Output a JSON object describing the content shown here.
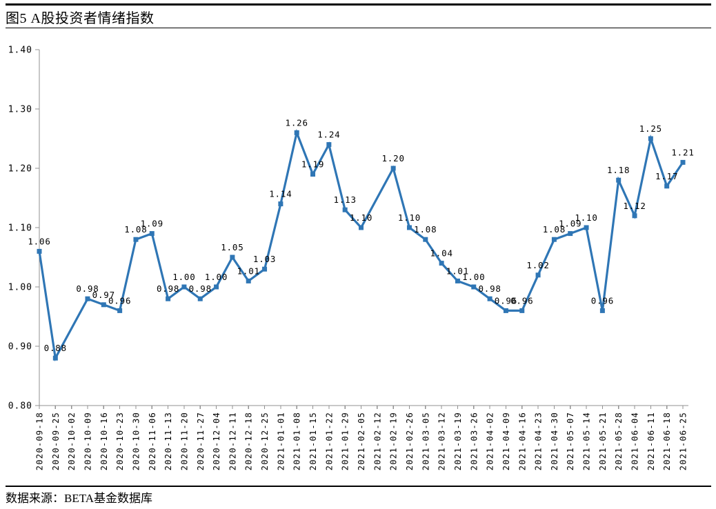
{
  "header": {
    "title": "图5 A股投资者情绪指数"
  },
  "footer": {
    "source_note": "数据来源：BETA基金数据库"
  },
  "colors": {
    "series_blue": "#2F76B5",
    "axis_gray": "#909090",
    "text_black": "#000000",
    "rule_black": "#000000",
    "background": "#ffffff"
  },
  "chart_data": {
    "type": "line",
    "title": "图5 A股投资者情绪指数",
    "xlabel": "",
    "ylabel": "",
    "ylim": [
      0.8,
      1.4
    ],
    "ytick_step": 0.1,
    "ytick_labels": [
      "0.80",
      "0.90",
      "1.00",
      "1.10",
      "1.20",
      "1.30",
      "1.40"
    ],
    "grid": false,
    "legend": "none",
    "marker": "square",
    "data_labels": true,
    "label_decimals": 2,
    "missing_points": [
      "2020-10-02",
      "2021-02-12"
    ],
    "categories": [
      "2020-09-18",
      "2020-09-25",
      "2020-10-02",
      "2020-10-09",
      "2020-10-16",
      "2020-10-23",
      "2020-10-30",
      "2020-11-06",
      "2020-11-13",
      "2020-11-20",
      "2020-11-27",
      "2020-12-04",
      "2020-12-11",
      "2020-12-18",
      "2020-12-25",
      "2021-01-01",
      "2021-01-08",
      "2021-01-15",
      "2021-01-22",
      "2021-01-29",
      "2021-02-05",
      "2021-02-12",
      "2021-02-19",
      "2021-02-26",
      "2021-03-05",
      "2021-03-12",
      "2021-03-19",
      "2021-03-26",
      "2021-04-02",
      "2021-04-09",
      "2021-04-16",
      "2021-04-23",
      "2021-04-30",
      "2021-05-07",
      "2021-05-14",
      "2021-05-21",
      "2021-05-28",
      "2021-06-04",
      "2021-06-11",
      "2021-06-18",
      "2021-06-25"
    ],
    "values": [
      1.06,
      0.88,
      null,
      0.98,
      0.97,
      0.96,
      1.08,
      1.09,
      0.98,
      1.0,
      0.98,
      1.0,
      1.05,
      1.01,
      1.03,
      1.14,
      1.26,
      1.19,
      1.24,
      1.13,
      1.1,
      null,
      1.2,
      1.1,
      1.08,
      1.04,
      1.01,
      1.0,
      0.98,
      0.96,
      0.96,
      1.02,
      1.08,
      1.09,
      1.1,
      0.96,
      1.18,
      1.12,
      1.25,
      1.17,
      1.21
    ]
  }
}
